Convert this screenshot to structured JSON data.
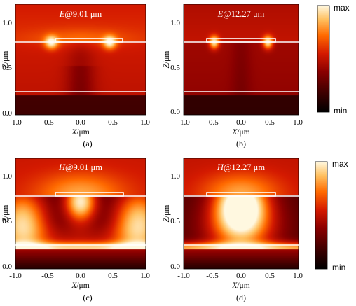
{
  "figure": {
    "colormap": [
      "#000000",
      "#3d0000",
      "#8a0000",
      "#d41a00",
      "#ff6a00",
      "#ffc060",
      "#fff8e0"
    ],
    "colorbar": {
      "max_label": "max",
      "min_label": "min"
    },
    "panels": [
      {
        "id": "a",
        "title_field": "E",
        "title_rest": "@9.01 μm",
        "xlabel_var": "X",
        "xlabel_unit": "/μm",
        "ylabel_var": "Z",
        "ylabel_unit": "/μm",
        "caption": "(a)",
        "x_ticks": [
          "-1.0",
          "-0.5",
          "0.0",
          "0.5",
          "1.0"
        ],
        "y_ticks": [
          "0.0",
          "0.5",
          "1.0"
        ],
        "mode": "E1"
      },
      {
        "id": "b",
        "title_field": "E",
        "title_rest": "@12.27 μm",
        "xlabel_var": "X",
        "xlabel_unit": "/μm",
        "ylabel_var": "Z",
        "ylabel_unit": "/μm",
        "caption": "(b)",
        "x_ticks": [
          "-1.0",
          "-0.5",
          "0.0",
          "0.5",
          "1.0"
        ],
        "y_ticks": [
          "0.0",
          "0.5",
          "1.0"
        ],
        "mode": "E2"
      },
      {
        "id": "c",
        "title_field": "H",
        "title_rest": "@9.01 μm",
        "xlabel_var": "X",
        "xlabel_unit": "/μm",
        "ylabel_var": "Z",
        "ylabel_unit": "/μm",
        "caption": "(c)",
        "x_ticks": [
          "-1.0",
          "-0.5",
          "0.0",
          "0.5",
          "1.0"
        ],
        "y_ticks": [
          "0.0",
          "0.5",
          "1.0"
        ],
        "mode": "H1"
      },
      {
        "id": "d",
        "title_field": "H",
        "title_rest": "@12.27 μm",
        "xlabel_var": "X",
        "xlabel_unit": "/μm",
        "ylabel_var": "Z",
        "ylabel_unit": "/μm",
        "caption": "(d)",
        "x_ticks": [
          "-1.0",
          "-0.5",
          "0.0",
          "0.5",
          "1.0"
        ],
        "y_ticks": [
          "0.0",
          "0.5",
          "1.0"
        ],
        "mode": "H2"
      }
    ]
  },
  "chart_data": [
    {
      "type": "heatmap",
      "title": "E@9.01 μm",
      "xlabel": "X/μm",
      "ylabel": "Z/μm",
      "xlim": [
        -1.0,
        1.0
      ],
      "ylim": [
        0.0,
        1.2
      ],
      "x_ticks": [
        -1.0,
        -0.5,
        0.0,
        0.5,
        1.0
      ],
      "y_ticks": [
        0.0,
        0.5,
        1.0
      ],
      "colorbar": [
        "min",
        "max"
      ]
    },
    {
      "type": "heatmap",
      "title": "E@12.27 μm",
      "xlabel": "X/μm",
      "ylabel": "Z/μm",
      "xlim": [
        -1.0,
        1.0
      ],
      "ylim": [
        0.0,
        1.2
      ],
      "x_ticks": [
        -1.0,
        -0.5,
        0.0,
        0.5,
        1.0
      ],
      "y_ticks": [
        0.0,
        0.5,
        1.0
      ],
      "colorbar": [
        "min",
        "max"
      ]
    },
    {
      "type": "heatmap",
      "title": "H@9.01 μm",
      "xlabel": "X/μm",
      "ylabel": "Z/μm",
      "xlim": [
        -1.0,
        1.0
      ],
      "ylim": [
        0.0,
        1.2
      ],
      "x_ticks": [
        -1.0,
        -0.5,
        0.0,
        0.5,
        1.0
      ],
      "y_ticks": [
        0.0,
        0.5,
        1.0
      ],
      "colorbar": [
        "min",
        "max"
      ]
    },
    {
      "type": "heatmap",
      "title": "H@12.27 μm",
      "xlabel": "X/μm",
      "ylabel": "Z/μm",
      "xlim": [
        -1.0,
        1.0
      ],
      "ylim": [
        0.0,
        1.2
      ],
      "x_ticks": [
        -1.0,
        -0.5,
        0.0,
        0.5,
        1.0
      ],
      "y_ticks": [
        0.0,
        0.5,
        1.0
      ],
      "colorbar": [
        "min",
        "max"
      ]
    }
  ]
}
